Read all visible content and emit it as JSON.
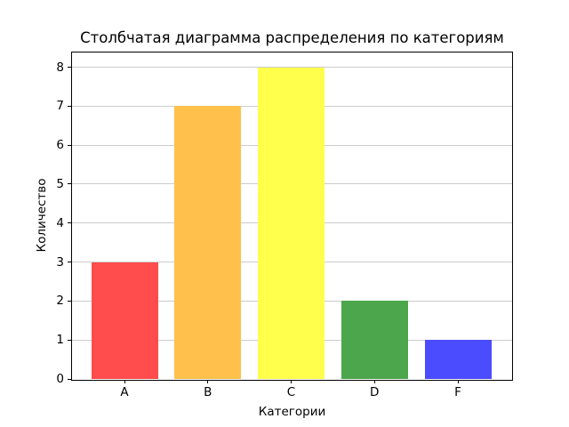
{
  "chart_data": {
    "type": "bar",
    "title": "Столбчатая диаграмма распределения по категориям",
    "xlabel": "Категории",
    "ylabel": "Количество",
    "categories": [
      "A",
      "B",
      "C",
      "D",
      "F"
    ],
    "values": [
      3,
      7,
      8,
      2,
      1
    ],
    "bar_colors": [
      "#ff4c4c",
      "#ffc04c",
      "#ffff4c",
      "#4ca64c",
      "#4c4cff"
    ],
    "yticks": [
      0,
      1,
      2,
      3,
      4,
      5,
      6,
      7,
      8
    ],
    "ylim": [
      0,
      8.4
    ],
    "xlim": [
      -0.64,
      4.64
    ],
    "bar_width_units": 0.8,
    "grid": "y",
    "grid_color": "#cccccc",
    "frame_color": "#000000",
    "background_color": "#ffffff",
    "legend": "none"
  }
}
